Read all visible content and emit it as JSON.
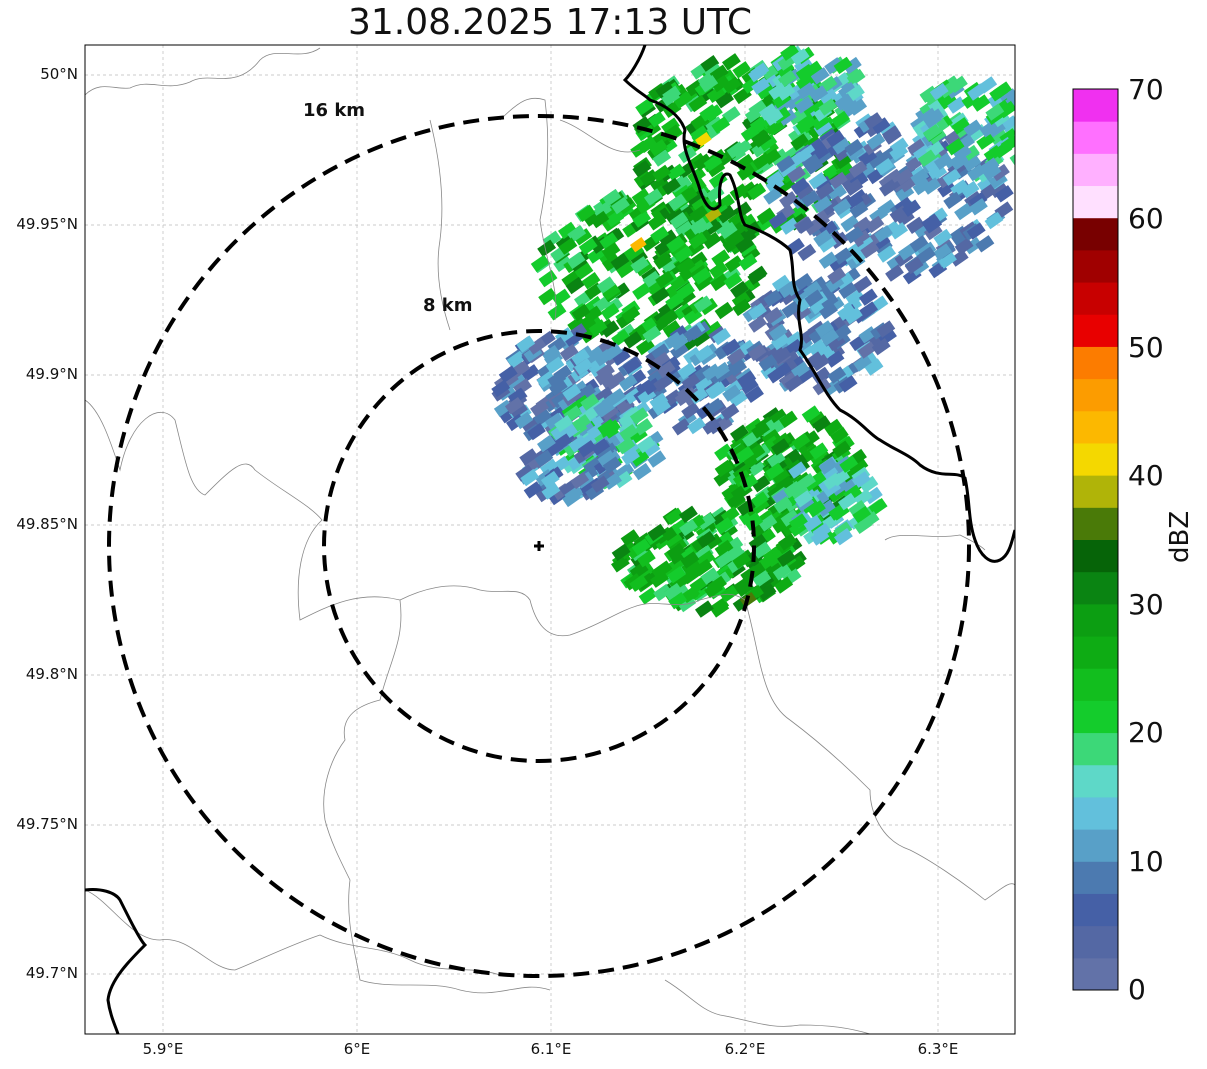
{
  "title": "31.08.2025 17:13 UTC",
  "map": {
    "lat_ticks": [
      "50°N",
      "49.95°N",
      "49.9°N",
      "49.85°N",
      "49.8°N",
      "49.75°N",
      "49.7°N"
    ],
    "lon_ticks": [
      "5.9°E",
      "6°E",
      "6.1°E",
      "6.2°E",
      "6.3°E"
    ],
    "range_rings": [
      {
        "label": "8 km",
        "radius_km": 8
      },
      {
        "label": "16 km",
        "radius_km": 16
      }
    ],
    "radar_marker": "radar-site-cross",
    "grid": true
  },
  "colorbar": {
    "label": "dBZ",
    "ticks": [
      "0",
      "10",
      "20",
      "30",
      "40",
      "50",
      "60",
      "70"
    ],
    "colors": [
      "#6272a8",
      "#5468a4",
      "#4560a6",
      "#4c7ab0",
      "#58a0c8",
      "#62c0dc",
      "#5ed8c8",
      "#3cd878",
      "#14cc2c",
      "#12be1e",
      "#0eac14",
      "#0c9e12",
      "#0a8412",
      "#066408",
      "#4a7a08",
      "#b0b408",
      "#f4d800",
      "#fcb800",
      "#fc9c00",
      "#fc7c00",
      "#e80000",
      "#c80000",
      "#a00000",
      "#780000",
      "#ffe0ff",
      "#ffb0ff",
      "#ff70ff",
      "#f030f0"
    ]
  }
}
